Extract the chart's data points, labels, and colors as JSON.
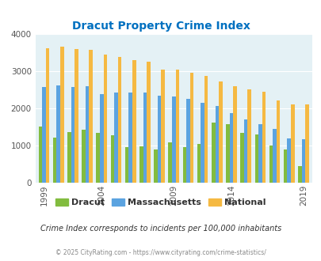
{
  "title": "Dracut Property Crime Index",
  "title_color": "#0070c0",
  "title_fontsize": 10,
  "years": [
    1999,
    2000,
    2001,
    2002,
    2004,
    2005,
    2006,
    2007,
    2008,
    2009,
    2010,
    2011,
    2013,
    2014,
    2015,
    2016,
    2017,
    2018,
    2019
  ],
  "dracut": [
    1520,
    1220,
    1370,
    1420,
    1330,
    1270,
    950,
    970,
    890,
    1090,
    950,
    1040,
    1610,
    1570,
    1340,
    1290,
    1010,
    890,
    450
  ],
  "mass": [
    2580,
    2620,
    2580,
    2600,
    2380,
    2420,
    2420,
    2420,
    2340,
    2320,
    2250,
    2150,
    2060,
    1870,
    1700,
    1580,
    1450,
    1200,
    1180
  ],
  "national": [
    3610,
    3650,
    3600,
    3580,
    3450,
    3380,
    3300,
    3250,
    3040,
    3050,
    2950,
    2870,
    2730,
    2600,
    2500,
    2450,
    2210,
    2100,
    2100
  ],
  "color_dracut": "#82bc3f",
  "color_mass": "#5ba3e0",
  "color_nat": "#f5b942",
  "bg_color": "#e4f1f5",
  "ylim": [
    0,
    4000
  ],
  "yticks": [
    0,
    1000,
    2000,
    3000,
    4000
  ],
  "tick_years": [
    1999,
    2004,
    2009,
    2014,
    2019
  ],
  "bar_width": 0.25,
  "legend_labels": [
    "Dracut",
    "Massachusetts",
    "National"
  ],
  "subtitle": "Crime Index corresponds to incidents per 100,000 inhabitants",
  "footer": "© 2025 CityRating.com - https://www.cityrating.com/crime-statistics/"
}
